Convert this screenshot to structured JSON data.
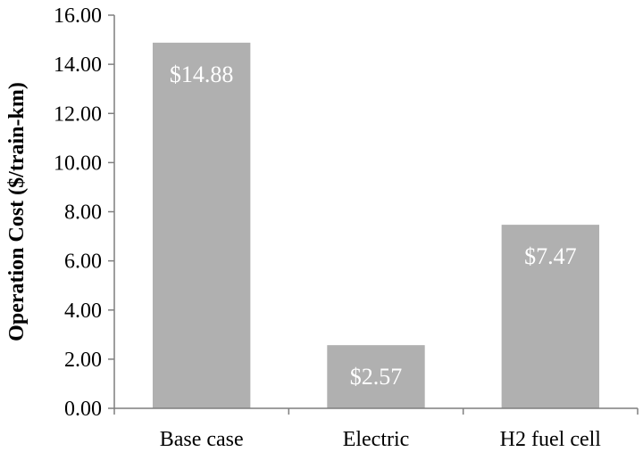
{
  "chart_data": {
    "type": "bar",
    "title": "",
    "xlabel": "",
    "ylabel": "Operation Cost ($/train-km)",
    "categories": [
      "Base case",
      "Electric",
      "H2 fuel cell"
    ],
    "values": [
      14.88,
      2.57,
      7.47
    ],
    "data_labels": [
      "$14.88",
      "$2.57",
      "$7.47"
    ],
    "ylim": [
      0,
      16
    ],
    "yticks": [
      0,
      2,
      4,
      6,
      8,
      10,
      12,
      14,
      16
    ],
    "ytick_labels": [
      "0.00",
      "2.00",
      "4.00",
      "6.00",
      "8.00",
      "10.00",
      "12.00",
      "14.00",
      "16.00"
    ],
    "bar_color": "#b0b0b0",
    "grid": false,
    "legend": "none"
  }
}
